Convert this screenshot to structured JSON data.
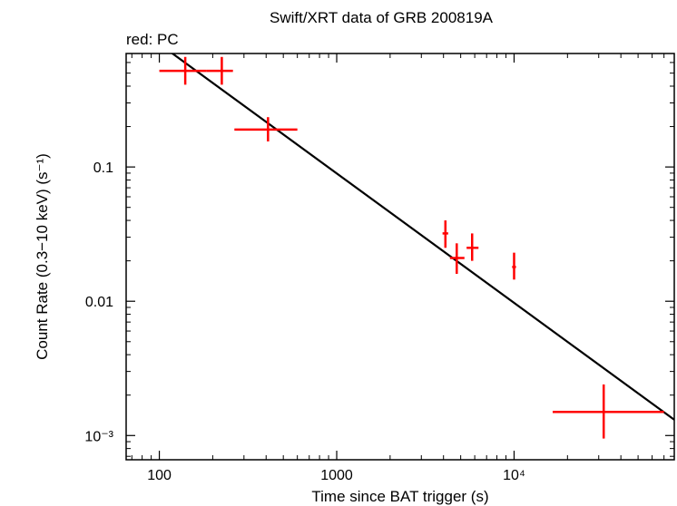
{
  "chart_data": {
    "type": "scatter",
    "title": "Swift/XRT data of GRB 200819A",
    "subtitle": "red: PC",
    "xlabel": "Time since BAT trigger (s)",
    "ylabel": "Count Rate (0.3−10 keV) (s⁻¹)",
    "xscale": "log",
    "yscale": "log",
    "xlim": [
      65,
      80000
    ],
    "ylim": [
      0.00066,
      0.7
    ],
    "x_ticks": [
      {
        "value": 100,
        "label": "100"
      },
      {
        "value": 1000,
        "label": "1000"
      },
      {
        "value": 10000,
        "label": "10⁴"
      }
    ],
    "y_ticks": [
      {
        "value": 0.001,
        "label": "10⁻³"
      },
      {
        "value": 0.01,
        "label": "0.01"
      },
      {
        "value": 0.1,
        "label": "0.1"
      }
    ],
    "series": [
      {
        "name": "PC",
        "color": "#ff0000",
        "points": [
          {
            "x": 140,
            "x_lo": 100,
            "x_hi": 185,
            "y": 0.52,
            "y_lo": 0.41,
            "y_hi": 0.66
          },
          {
            "x": 225,
            "x_lo": 185,
            "x_hi": 260,
            "y": 0.52,
            "y_lo": 0.41,
            "y_hi": 0.66
          },
          {
            "x": 410,
            "x_lo": 265,
            "x_hi": 600,
            "y": 0.19,
            "y_lo": 0.155,
            "y_hi": 0.235
          },
          {
            "x": 4100,
            "x_lo": 3950,
            "x_hi": 4250,
            "y": 0.032,
            "y_lo": 0.025,
            "y_hi": 0.04
          },
          {
            "x": 4750,
            "x_lo": 4350,
            "x_hi": 5250,
            "y": 0.021,
            "y_lo": 0.016,
            "y_hi": 0.027
          },
          {
            "x": 5800,
            "x_lo": 5400,
            "x_hi": 6300,
            "y": 0.025,
            "y_lo": 0.02,
            "y_hi": 0.032
          },
          {
            "x": 10000,
            "x_lo": 9750,
            "x_hi": 10250,
            "y": 0.018,
            "y_lo": 0.0145,
            "y_hi": 0.023
          },
          {
            "x": 32000,
            "x_lo": 16500,
            "x_hi": 70000,
            "y": 0.0015,
            "y_lo": 0.00095,
            "y_hi": 0.0024
          }
        ]
      }
    ],
    "fit_line": {
      "name": "model",
      "color": "#000000",
      "x": [
        100,
        80000
      ],
      "y": [
        0.825,
        0.00131
      ]
    }
  }
}
